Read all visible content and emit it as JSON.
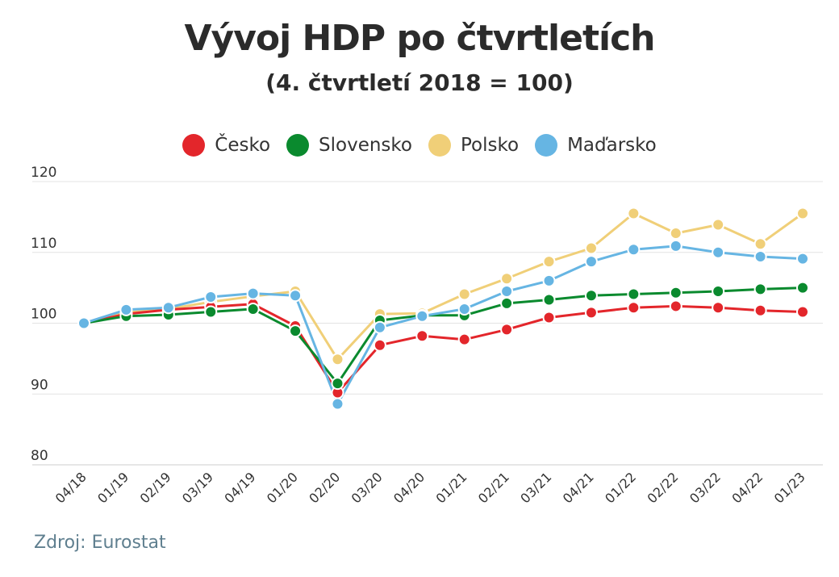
{
  "title": "Vývoj HDP po čtvrtletích",
  "subtitle": "(4. čtvrtletí 2018 = 100)",
  "source": "Zdroj: Eurostat",
  "chart_data": {
    "type": "line",
    "categories": [
      "04/18",
      "01/19",
      "02/19",
      "03/19",
      "04/19",
      "01/20",
      "02/20",
      "03/20",
      "04/20",
      "01/21",
      "02/21",
      "03/21",
      "04/21",
      "01/22",
      "02/22",
      "03/22",
      "04/22",
      "01/23"
    ],
    "y_ticks": [
      80,
      90,
      100,
      110,
      120
    ],
    "ylim": [
      80,
      120
    ],
    "grid": true,
    "legend_position": "top-center",
    "series": [
      {
        "name": "Česko",
        "color": "#e3262b",
        "values": [
          100,
          101.3,
          101.9,
          102.3,
          102.7,
          99.6,
          90.2,
          96.9,
          98.2,
          97.7,
          99.1,
          100.8,
          101.5,
          102.2,
          102.4,
          102.2,
          101.8,
          101.6
        ]
      },
      {
        "name": "Slovensko",
        "color": "#0a8a2e",
        "values": [
          100,
          101.0,
          101.2,
          101.6,
          102.0,
          98.9,
          91.5,
          100.4,
          101.1,
          101.1,
          102.8,
          103.3,
          103.9,
          104.1,
          104.3,
          104.5,
          104.8,
          105.0
        ]
      },
      {
        "name": "Polsko",
        "color": "#f0cf78",
        "values": [
          100,
          101.5,
          102.0,
          103.0,
          103.8,
          104.5,
          94.9,
          101.3,
          101.4,
          104.1,
          106.3,
          108.7,
          110.6,
          115.5,
          112.7,
          113.9,
          111.2,
          115.5
        ]
      },
      {
        "name": "Maďarsko",
        "color": "#66b5e3",
        "values": [
          100,
          101.9,
          102.2,
          103.7,
          104.2,
          103.9,
          88.6,
          99.4,
          101.0,
          102.0,
          104.5,
          106.0,
          108.7,
          110.4,
          110.9,
          110.0,
          109.4,
          109.1
        ]
      }
    ]
  }
}
